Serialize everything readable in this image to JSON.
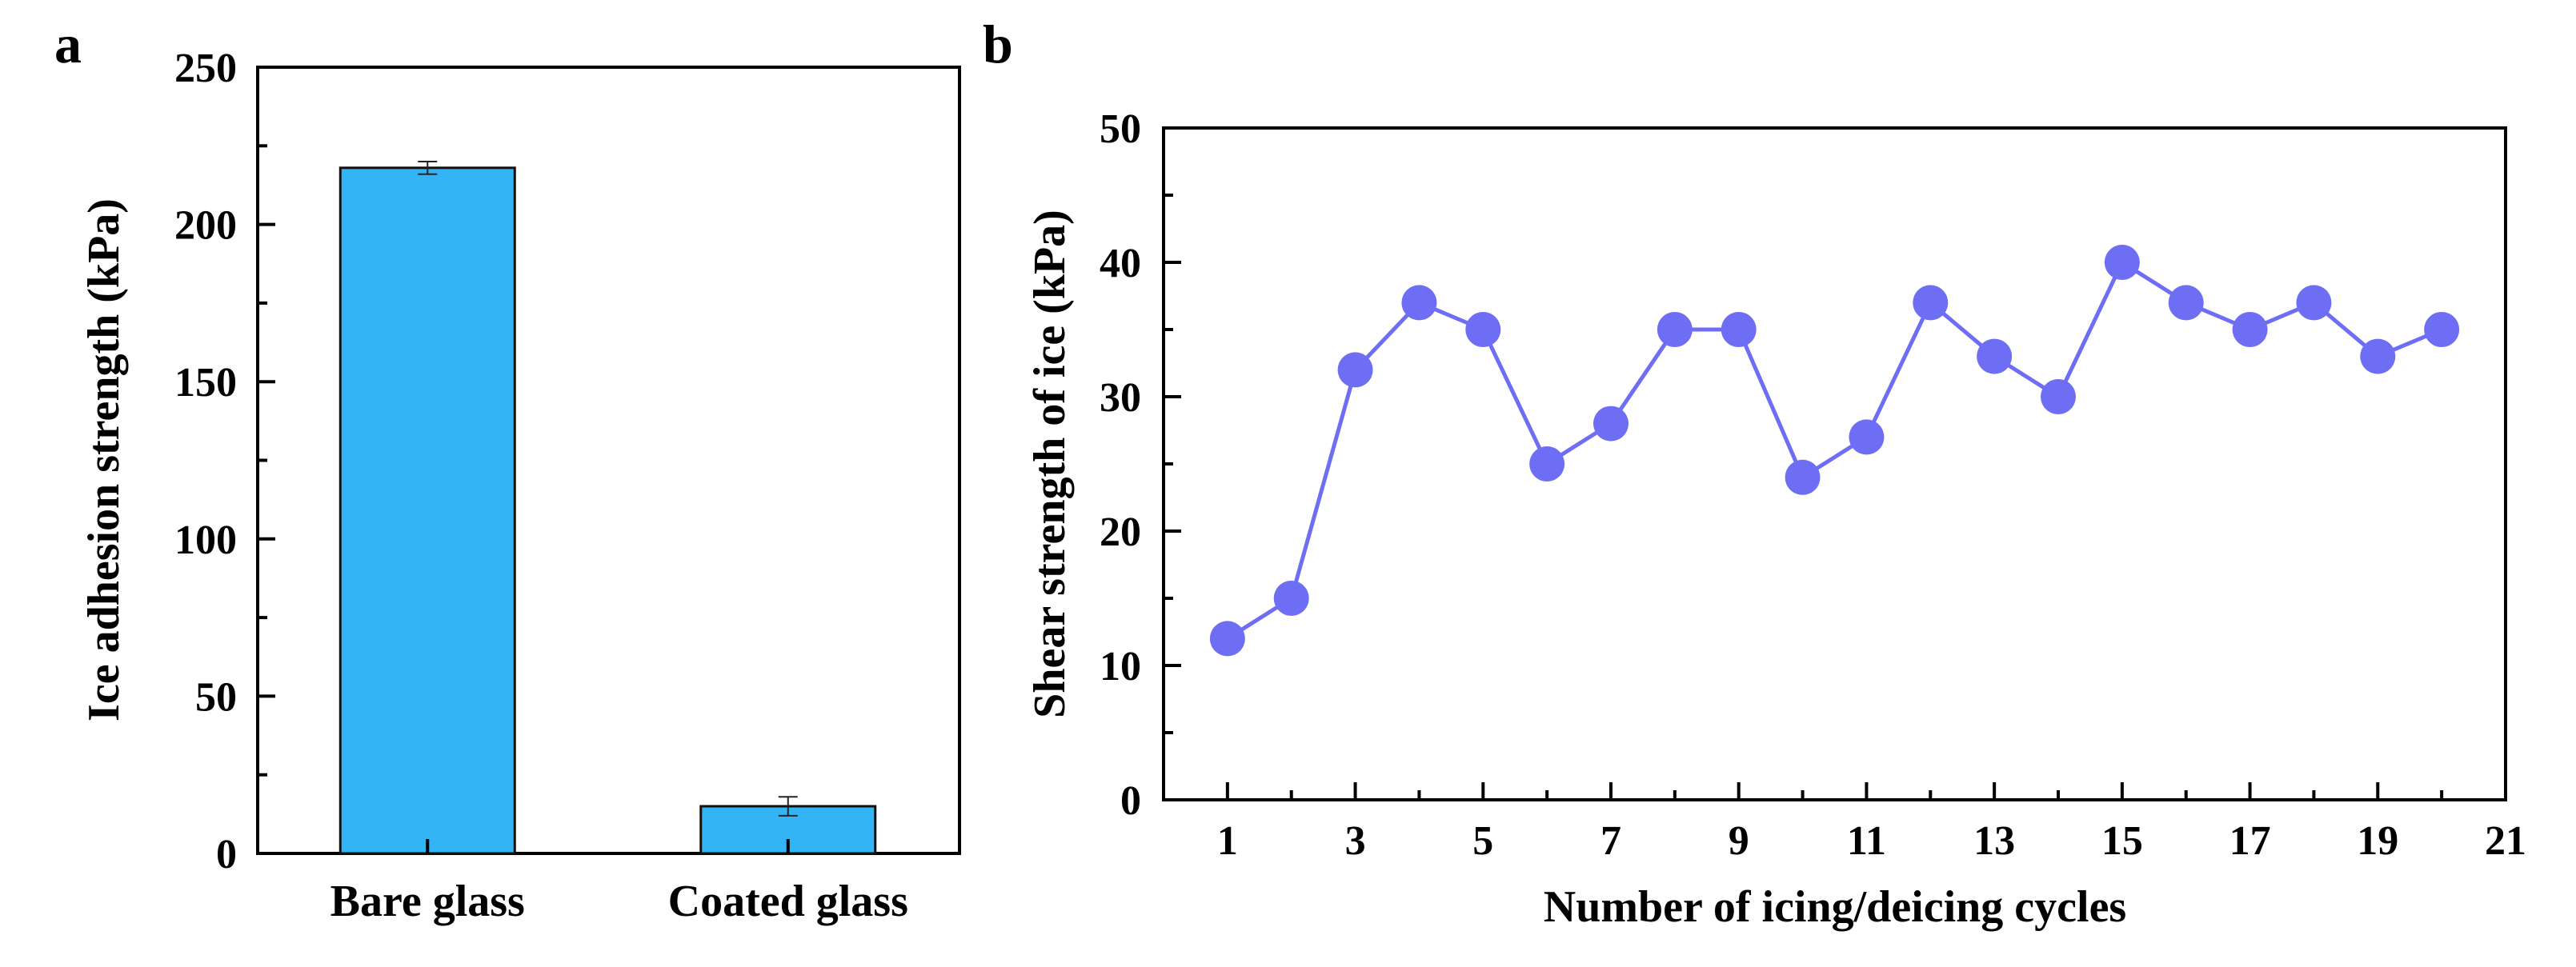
{
  "chart_data": [
    {
      "panel_label": "a",
      "type": "bar",
      "categories": [
        "Bare glass",
        "Coated glass"
      ],
      "values": [
        218,
        15
      ],
      "errors": [
        2,
        3
      ],
      "xlabel": "",
      "ylabel": "Ice adhesion strength (kPa)",
      "ylim": [
        0,
        250
      ],
      "yticks": [
        0,
        50,
        100,
        150,
        200,
        250
      ],
      "bar_color": "#33B5F5",
      "grid": false
    },
    {
      "panel_label": "b",
      "type": "line",
      "x": [
        1,
        2,
        3,
        4,
        5,
        6,
        7,
        8,
        9,
        10,
        11,
        12,
        13,
        14,
        15,
        16,
        17,
        18,
        19,
        20
      ],
      "y": [
        12,
        15,
        32,
        37,
        35,
        25,
        28,
        35,
        35,
        24,
        27,
        37,
        33,
        30,
        40,
        37,
        35,
        37,
        33,
        35
      ],
      "xlabel": "Number of icing/deicing cycles",
      "ylabel": "Shear strength of ice (kPa)",
      "xlim": [
        0,
        21
      ],
      "ylim": [
        0,
        50
      ],
      "xticks": [
        1,
        3,
        5,
        7,
        9,
        11,
        13,
        15,
        17,
        19,
        21
      ],
      "yticks": [
        0,
        10,
        20,
        30,
        40,
        50
      ],
      "series_color": "#6E6EF5",
      "grid": false
    }
  ]
}
